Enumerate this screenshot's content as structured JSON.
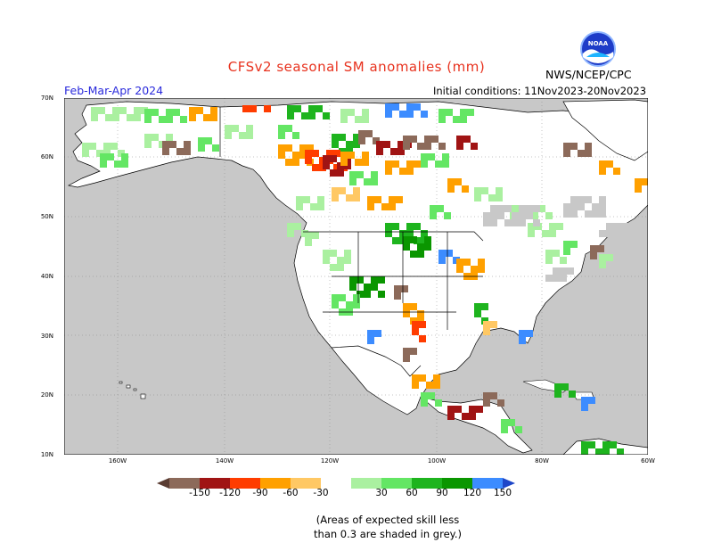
{
  "header": {
    "title": "CFSv2 seasonal SM anomalies (mm)",
    "agency": "NWS/NCEP/CPC",
    "season": "Feb-Mar-Apr 2024",
    "initial_conditions": "Initial conditions: 11Nov2023-20Nov2023",
    "logo_text": "NOAA"
  },
  "map": {
    "lat_labels": [
      "70N",
      "60N",
      "50N",
      "40N",
      "30N",
      "20N",
      "10N"
    ],
    "lon_labels": [
      "160W",
      "140W",
      "120W",
      "100W",
      "80W",
      "60W"
    ],
    "colors": {
      "ocean": "#c8c8c8",
      "land": "#ffffff",
      "grey_skill": "#c8c8c8",
      "neg150": "#8c6a5a",
      "neg120": "#a01414",
      "neg90": "#ff3c00",
      "neg60": "#ffa000",
      "neg30": "#ffc864",
      "pos30": "#aaf0a0",
      "pos60": "#64e664",
      "pos90": "#1eb41e",
      "pos120": "#0a9600",
      "pos150": "#3c8cff"
    }
  },
  "colorbar": {
    "labels": [
      "-150",
      "-120",
      "-90",
      "-60",
      "-30",
      "30",
      "60",
      "90",
      "120",
      "150"
    ],
    "colors": [
      "#5a3c32",
      "#8c6a5a",
      "#a01414",
      "#ff3c00",
      "#ffa000",
      "#ffc864",
      "#ffffff",
      "#aaf0a0",
      "#64e664",
      "#1eb41e",
      "#0a9600",
      "#3c8cff",
      "#1e46c8"
    ]
  },
  "note": {
    "line1": "(Areas of expected skill less",
    "line2": "than 0.3 are shaded in grey.)"
  }
}
